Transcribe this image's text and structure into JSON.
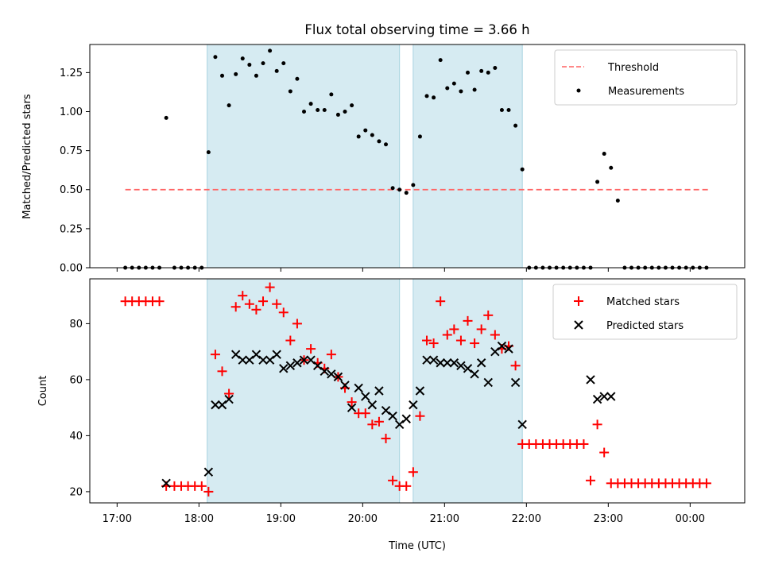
{
  "title": "Flux total observing time = 3.66 h",
  "chart_data": [
    {
      "type": "scatter",
      "ylabel": "Matched/Predicted stars",
      "xlabel": "",
      "xlim": [
        "16:40",
        "00:40"
      ],
      "ylim": [
        0,
        1.43
      ],
      "yticks": [
        "0.00",
        "0.25",
        "0.50",
        "0.75",
        "1.00",
        "1.25"
      ],
      "ytick_values": [
        0,
        0.25,
        0.5,
        0.75,
        1.0,
        1.25
      ],
      "shaded_intervals": [
        [
          "18:06",
          "20:27"
        ],
        [
          "20:37",
          "21:57"
        ]
      ],
      "legend_position": "upper right",
      "legend": {
        "threshold": "Threshold",
        "measurements": "Measurements"
      },
      "threshold": {
        "value": 0.5,
        "x_range": [
          "17:06",
          "00:14"
        ],
        "color": "#ff6666"
      },
      "series": [
        {
          "name": "Measurements",
          "color": "#000000",
          "x": [
            "17:06",
            "17:11",
            "17:16",
            "17:21",
            "17:26",
            "17:31",
            "17:36",
            "17:42",
            "17:47",
            "17:52",
            "17:57",
            "18:02",
            "18:07",
            "18:12",
            "18:17",
            "18:22",
            "18:27",
            "18:32",
            "18:37",
            "18:42",
            "18:47",
            "18:52",
            "18:57",
            "19:02",
            "19:07",
            "19:12",
            "19:17",
            "19:22",
            "19:27",
            "19:32",
            "19:37",
            "19:42",
            "19:47",
            "19:52",
            "19:57",
            "20:02",
            "20:07",
            "20:12",
            "20:17",
            "20:22",
            "20:27",
            "20:32",
            "20:37",
            "20:42",
            "20:47",
            "20:52",
            "20:57",
            "21:02",
            "21:07",
            "21:12",
            "21:17",
            "21:22",
            "21:27",
            "21:32",
            "21:37",
            "21:42",
            "21:47",
            "21:52",
            "21:57",
            "22:02",
            "22:07",
            "22:12",
            "22:17",
            "22:22",
            "22:27",
            "22:32",
            "22:37",
            "22:42",
            "22:47",
            "22:52",
            "22:57",
            "23:02",
            "23:07",
            "23:12",
            "23:17",
            "23:22",
            "23:27",
            "23:32",
            "23:37",
            "23:42",
            "23:47",
            "23:52",
            "23:57",
            "00:02",
            "00:07",
            "00:12"
          ],
          "y": [
            0,
            0,
            0,
            0,
            0,
            0,
            0.96,
            0,
            0,
            0,
            0,
            0,
            0.74,
            1.35,
            1.23,
            1.04,
            1.24,
            1.34,
            1.3,
            1.23,
            1.31,
            1.39,
            1.26,
            1.31,
            1.13,
            1.21,
            1.0,
            1.05,
            1.01,
            1.01,
            1.11,
            0.98,
            1.0,
            1.04,
            0.84,
            0.88,
            0.85,
            0.81,
            0.79,
            0.51,
            0.5,
            0.48,
            0.53,
            0.84,
            1.1,
            1.09,
            1.33,
            1.15,
            1.18,
            1.13,
            1.25,
            1.14,
            1.26,
            1.25,
            1.28,
            1.01,
            1.01,
            0.91,
            0.63,
            0,
            0,
            0,
            0,
            0,
            0,
            0,
            0,
            0,
            0,
            0.55,
            0.73,
            0.64,
            0.43,
            0,
            0,
            0,
            0,
            0,
            0,
            0,
            0,
            0,
            0,
            0,
            0,
            0
          ]
        }
      ]
    },
    {
      "type": "scatter",
      "xlabel": "Time (UTC)",
      "ylabel": "Count",
      "xlim": [
        "16:40",
        "00:40"
      ],
      "ylim": [
        16,
        96
      ],
      "yticks": [
        "20",
        "40",
        "60",
        "80"
      ],
      "ytick_values": [
        20,
        40,
        60,
        80
      ],
      "xticks": [
        "17:00",
        "18:00",
        "19:00",
        "20:00",
        "21:00",
        "22:00",
        "23:00",
        "00:00"
      ],
      "shaded_intervals": [
        [
          "18:06",
          "20:27"
        ],
        [
          "20:37",
          "21:57"
        ]
      ],
      "legend_position": "upper right",
      "series": [
        {
          "name": "Matched stars",
          "color": "#ff0000",
          "marker": "plus",
          "x": [
            "17:06",
            "17:11",
            "17:16",
            "17:21",
            "17:26",
            "17:31",
            "17:36",
            "17:42",
            "17:47",
            "17:52",
            "17:57",
            "18:02",
            "18:07",
            "18:12",
            "18:17",
            "18:22",
            "18:27",
            "18:32",
            "18:37",
            "18:42",
            "18:47",
            "18:52",
            "18:57",
            "19:02",
            "19:07",
            "19:12",
            "19:17",
            "19:22",
            "19:27",
            "19:32",
            "19:37",
            "19:42",
            "19:47",
            "19:52",
            "19:57",
            "20:02",
            "20:07",
            "20:12",
            "20:17",
            "20:22",
            "20:27",
            "20:32",
            "20:37",
            "20:42",
            "20:47",
            "20:52",
            "20:57",
            "21:02",
            "21:07",
            "21:12",
            "21:17",
            "21:22",
            "21:27",
            "21:32",
            "21:37",
            "21:42",
            "21:47",
            "21:52",
            "21:57",
            "22:02",
            "22:07",
            "22:12",
            "22:17",
            "22:22",
            "22:27",
            "22:32",
            "22:37",
            "22:42",
            "22:47",
            "22:52",
            "22:57",
            "23:02",
            "23:07",
            "23:12",
            "23:17",
            "23:22",
            "23:27",
            "23:32",
            "23:37",
            "23:42",
            "23:47",
            "23:52",
            "23:57",
            "00:02",
            "00:07",
            "00:12"
          ],
          "y": [
            88,
            88,
            88,
            88,
            88,
            88,
            22,
            22,
            22,
            22,
            22,
            22,
            20,
            69,
            63,
            55,
            86,
            90,
            87,
            85,
            88,
            93,
            87,
            84,
            74,
            80,
            67,
            71,
            66,
            64,
            69,
            61,
            57,
            52,
            48,
            48,
            44,
            45,
            39,
            24,
            22,
            22,
            27,
            47,
            74,
            73,
            88,
            76,
            78,
            74,
            81,
            73,
            78,
            83,
            76,
            71,
            72,
            65,
            37,
            37,
            37,
            37,
            37,
            37,
            37,
            37,
            37,
            37,
            24,
            44,
            34,
            23,
            23,
            23,
            23,
            23,
            23,
            23,
            23,
            23,
            23,
            23,
            23,
            23,
            23,
            23
          ]
        },
        {
          "name": "Predicted stars",
          "color": "#000000",
          "marker": "x",
          "x": [
            "17:36",
            "18:07",
            "18:12",
            "18:17",
            "18:22",
            "18:27",
            "18:32",
            "18:37",
            "18:42",
            "18:47",
            "18:52",
            "18:57",
            "19:02",
            "19:07",
            "19:12",
            "19:17",
            "19:22",
            "19:27",
            "19:32",
            "19:37",
            "19:42",
            "19:47",
            "19:52",
            "19:57",
            "20:02",
            "20:07",
            "20:12",
            "20:17",
            "20:22",
            "20:27",
            "20:32",
            "20:37",
            "20:42",
            "20:47",
            "20:52",
            "20:57",
            "21:02",
            "21:07",
            "21:12",
            "21:17",
            "21:22",
            "21:27",
            "21:32",
            "21:37",
            "21:42",
            "21:47",
            "21:52",
            "21:57",
            "22:47",
            "22:52",
            "22:57",
            "23:02"
          ],
          "y": [
            23,
            27,
            51,
            51,
            53,
            69,
            67,
            67,
            69,
            67,
            67,
            69,
            64,
            65,
            66,
            67,
            67,
            65,
            63,
            62,
            61,
            58,
            50,
            57,
            54,
            51,
            56,
            49,
            47,
            44,
            46,
            51,
            56,
            67,
            67,
            66,
            66,
            66,
            65,
            64,
            62,
            66,
            59,
            70,
            72,
            71,
            59,
            44,
            60,
            53,
            54,
            54
          ]
        }
      ]
    }
  ]
}
